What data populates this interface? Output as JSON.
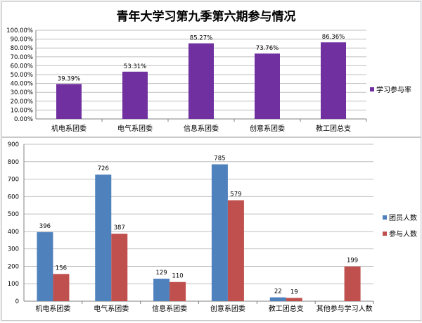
{
  "colors": {
    "purple": "#7030a0",
    "blue": "#4f81bd",
    "red": "#c0504d",
    "grid": "#bfbfbf",
    "axis": "#808080",
    "text": "#000000"
  },
  "chart_data": [
    {
      "type": "bar",
      "title": "青年大学习第九季第六期参与情况",
      "categories": [
        "机电系团委",
        "电气系团委",
        "信息系团委",
        "创意系团委",
        "教工团总支"
      ],
      "series": [
        {
          "name": "学习参与率",
          "values": [
            39.39,
            53.31,
            85.27,
            73.76,
            86.36
          ],
          "labels": [
            "39.39%",
            "53.31%",
            "85.27%",
            "73.76%",
            "86.36%"
          ]
        }
      ],
      "yticks": [
        "0.00%",
        "10.00%",
        "20.00%",
        "30.00%",
        "40.00%",
        "50.00%",
        "60.00%",
        "70.00%",
        "80.00%",
        "90.00%",
        "100.00%"
      ],
      "ylim": [
        0,
        100
      ],
      "legend": "right",
      "grid": true
    },
    {
      "type": "bar",
      "title": "",
      "categories": [
        "机电系团委",
        "电气系团委",
        "信息系团委",
        "创意系团委",
        "教工团总支",
        "其他参与学习人数"
      ],
      "series": [
        {
          "name": "团员人数",
          "values": [
            396,
            726,
            129,
            785,
            22,
            null
          ]
        },
        {
          "name": "参与人数",
          "values": [
            156,
            387,
            110,
            579,
            19,
            199
          ]
        }
      ],
      "yticks": [
        "0",
        "100",
        "200",
        "300",
        "400",
        "500",
        "600",
        "700",
        "800",
        "900"
      ],
      "ylim": [
        0,
        900
      ],
      "legend": "right",
      "grid": true
    }
  ]
}
